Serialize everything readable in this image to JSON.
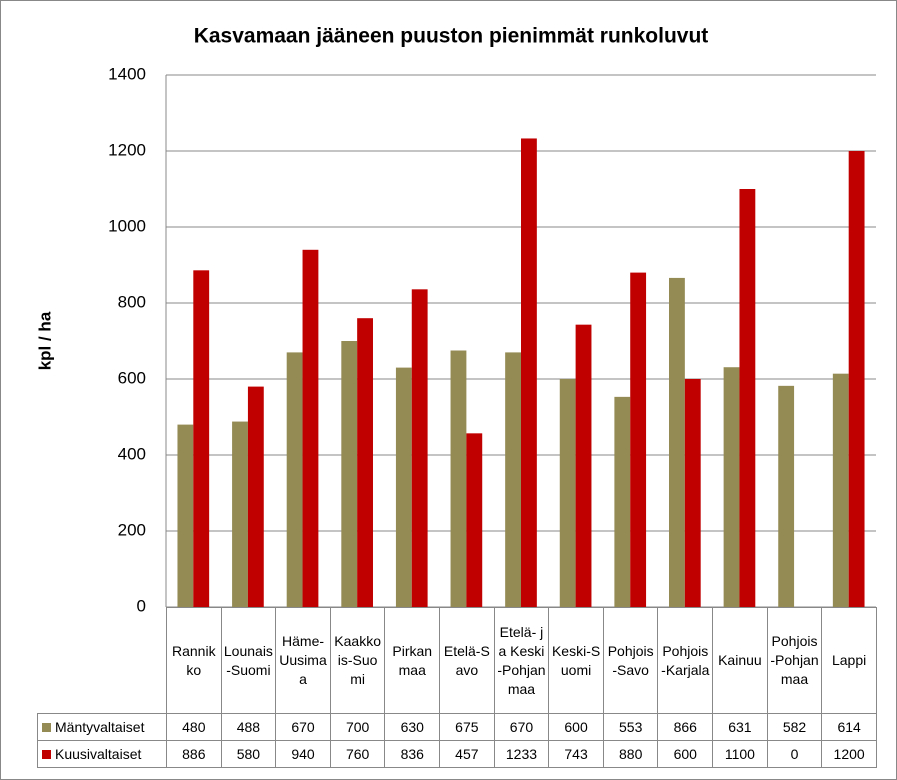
{
  "chart_data": {
    "type": "bar",
    "title": "Kasvamaan jääneen puuston pienimmät runkoluvut",
    "y_label": "kpl / ha",
    "categories": [
      "Rannikko",
      "Lounais-Suomi",
      "Häme-Uusimaa",
      "Kaakkois-Suomi",
      "Pirkanmaa",
      "Etelä-Savo",
      "Etelä- ja Keski-Pohjanmaa",
      "Keski-Suomi",
      "Pohjois-Savo",
      "Pohjois-Karjala",
      "Kainuu",
      "Pohjois-Pohjanmaa",
      "Lappi"
    ],
    "series": [
      {
        "name": "Mäntyvaltaiset",
        "color": "#948a54",
        "values": [
          480,
          488,
          670,
          700,
          630,
          675,
          670,
          600,
          553,
          866,
          631,
          582,
          614
        ]
      },
      {
        "name": "Kuusivaltaiset",
        "color": "#c00000",
        "values": [
          886,
          580,
          940,
          760,
          836,
          457,
          1233,
          743,
          880,
          600,
          1100,
          0,
          1200
        ]
      }
    ],
    "ylim": [
      0,
      1400
    ],
    "yticks": [
      0,
      200,
      400,
      600,
      800,
      1000,
      1200,
      1400
    ],
    "grid": true
  }
}
